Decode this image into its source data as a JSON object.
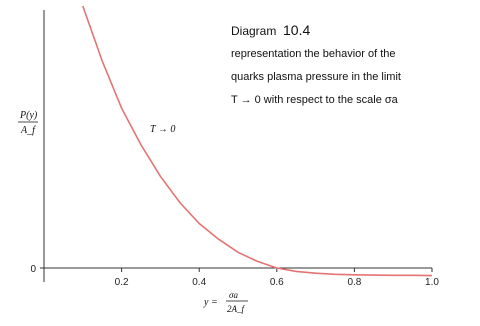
{
  "chart_data": {
    "type": "line",
    "title": "",
    "xlim": [
      0.0,
      1.0
    ],
    "ylim": [
      -0.03,
      1.0
    ],
    "x_ticks": [
      "0.2",
      "0.4",
      "0.6",
      "0.8",
      "1.0"
    ],
    "y_ticks": [
      "0"
    ],
    "ylabel_numerator": "P(y)",
    "ylabel_denominator": "A_f",
    "xlabel_lhs": "y =",
    "xlabel_numerator": "σa",
    "xlabel_denominator": "2A_f",
    "grid": false,
    "legend": "none",
    "curve_color": "#e57373",
    "series": [
      {
        "x": [
          0.1,
          0.15,
          0.2,
          0.25,
          0.3,
          0.35,
          0.4,
          0.45,
          0.5,
          0.55,
          0.6,
          0.65,
          0.7,
          0.75,
          0.8,
          0.85,
          0.9,
          0.95,
          1.0
        ],
        "y": [
          1.0,
          0.79,
          0.61,
          0.47,
          0.35,
          0.25,
          0.17,
          0.11,
          0.06,
          0.025,
          0.0,
          -0.013,
          -0.02,
          -0.024,
          -0.026,
          -0.027,
          -0.028,
          -0.028,
          -0.029
        ]
      }
    ],
    "annotations": {
      "curve_label": "T → 0",
      "diagram_label": "Diagram",
      "diagram_number": "10.4",
      "description_lines": [
        "representation the behavior of the",
        "quarks plasma pressure in the limit",
        "T → 0 with respect to the scale σa"
      ]
    }
  }
}
